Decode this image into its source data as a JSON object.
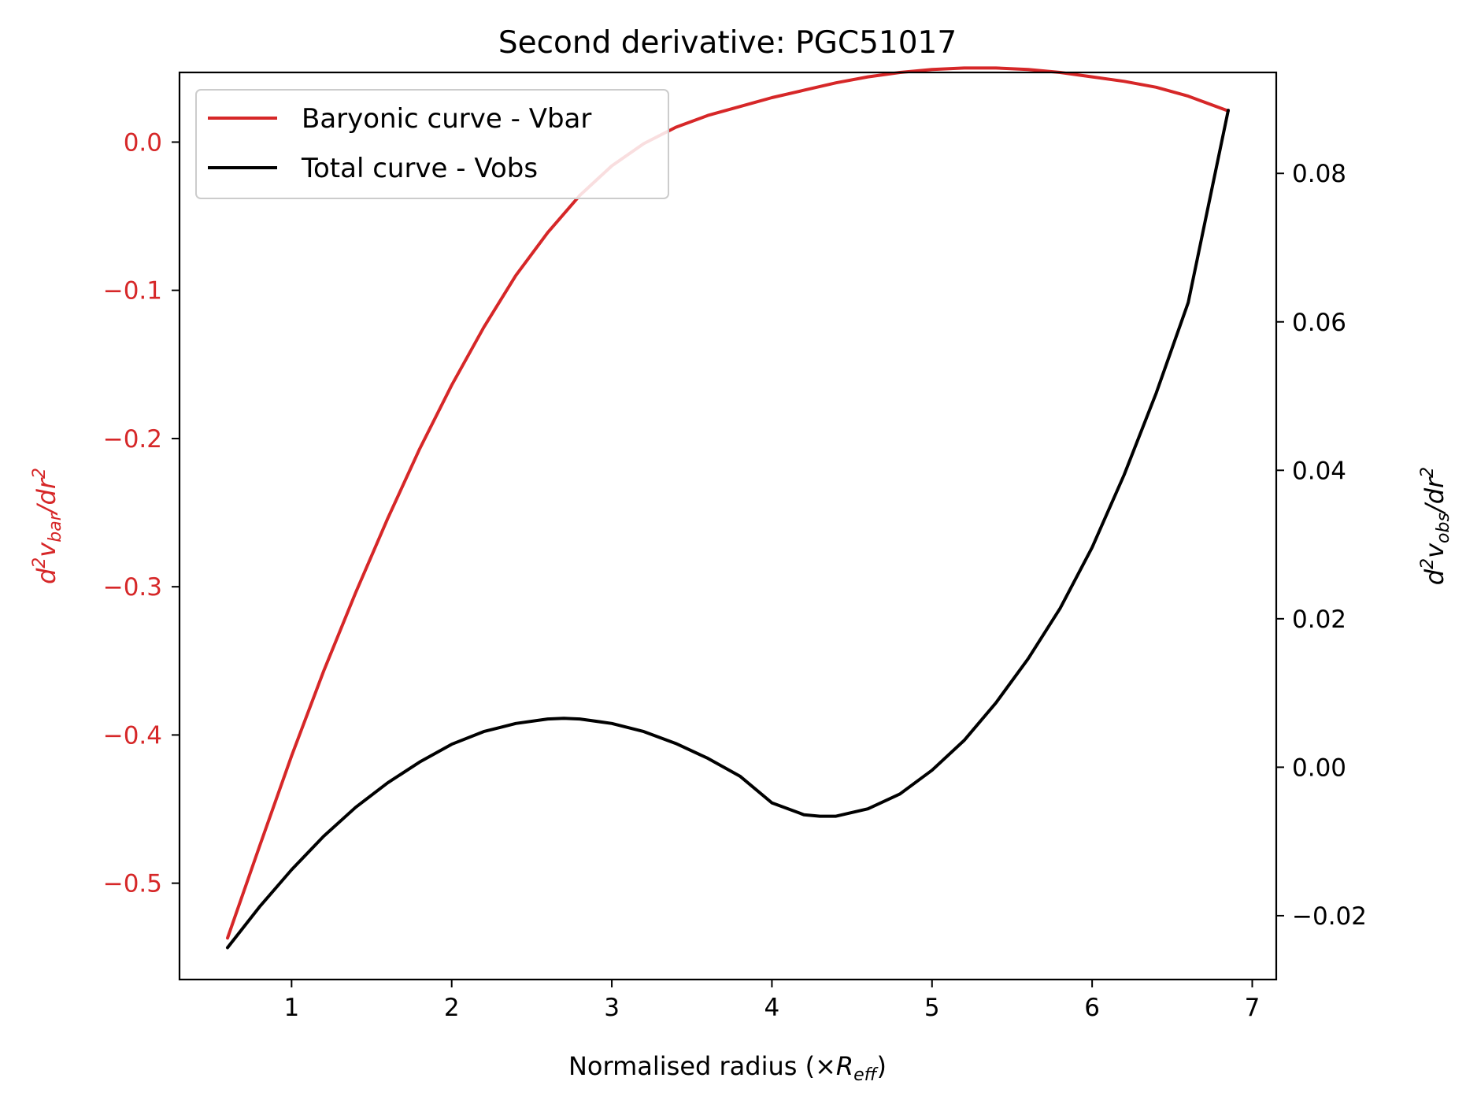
{
  "chart_data": {
    "type": "line",
    "title": "Second derivative: PGC51017",
    "xlabel": {
      "main": "Normalised radius (×",
      "var": "R",
      "sub": "eff",
      "close": ")"
    },
    "ylabel_left": {
      "prefix": "d",
      "sup1": "2",
      "var": "v",
      "sub": "bar",
      "middle": "/dr",
      "sup2": "2"
    },
    "ylabel_right": {
      "prefix": "d",
      "sup1": "2",
      "var": "v",
      "sub": "obs",
      "middle": "/dr",
      "sup2": "2"
    },
    "xlim": [
      0.3,
      7.15
    ],
    "ylim_left": [
      -0.565,
      0.047
    ],
    "ylim_right": [
      -0.0286,
      0.0936
    ],
    "x_ticks": [
      1,
      2,
      3,
      4,
      5,
      6,
      7
    ],
    "x_tick_labels": [
      "1",
      "2",
      "3",
      "4",
      "5",
      "6",
      "7"
    ],
    "y_left_ticks": [
      0.0,
      -0.1,
      -0.2,
      -0.3,
      -0.4,
      -0.5
    ],
    "y_left_tick_labels": [
      "0.0",
      "−0.1",
      "−0.2",
      "−0.3",
      "−0.4",
      "−0.5"
    ],
    "y_right_ticks": [
      0.08,
      0.06,
      0.04,
      0.02,
      0.0,
      -0.02
    ],
    "y_right_tick_labels": [
      "0.08",
      "0.06",
      "0.04",
      "0.02",
      "0.00",
      "−0.02"
    ],
    "grid": false,
    "legend_position": "top-left",
    "series": [
      {
        "name": "Baryonic curve - Vbar",
        "axis": "left",
        "color": "#d62728",
        "x": [
          0.6,
          0.8,
          1.0,
          1.2,
          1.4,
          1.6,
          1.8,
          2.0,
          2.2,
          2.4,
          2.6,
          2.8,
          3.0,
          3.2,
          3.4,
          3.6,
          3.7,
          3.8,
          4.0,
          4.2,
          4.4,
          4.6,
          4.8,
          5.0,
          5.2,
          5.4,
          5.6,
          5.8,
          6.0,
          6.2,
          6.4,
          6.6,
          6.85
        ],
        "values": [
          -0.537,
          -0.475,
          -0.414,
          -0.357,
          -0.304,
          -0.254,
          -0.207,
          -0.164,
          -0.125,
          -0.09,
          -0.061,
          -0.036,
          -0.016,
          -0.001,
          0.01,
          0.018,
          0.021,
          0.024,
          0.03,
          0.035,
          0.04,
          0.044,
          0.047,
          0.049,
          0.05,
          0.05,
          0.049,
          0.047,
          0.044,
          0.041,
          0.037,
          0.031,
          0.021
        ]
      },
      {
        "name": "Total curve - Vobs",
        "axis": "right",
        "color": "#000000",
        "x": [
          0.6,
          0.8,
          1.0,
          1.2,
          1.4,
          1.6,
          1.8,
          2.0,
          2.2,
          2.4,
          2.6,
          2.7,
          2.8,
          3.0,
          3.2,
          3.4,
          3.6,
          3.8,
          4.0,
          4.2,
          4.3,
          4.4,
          4.6,
          4.8,
          5.0,
          5.2,
          5.4,
          5.6,
          5.8,
          6.0,
          6.2,
          6.4,
          6.6,
          6.85
        ],
        "values": [
          -0.0243,
          -0.0188,
          -0.0138,
          -0.0093,
          -0.0054,
          -0.0021,
          0.0007,
          0.0031,
          0.0048,
          0.0059,
          0.0065,
          0.0066,
          0.0065,
          0.0059,
          0.0048,
          0.0032,
          0.0012,
          -0.0012,
          -0.0048,
          -0.0064,
          -0.0066,
          -0.0066,
          -0.0056,
          -0.0036,
          -0.0004,
          0.0036,
          0.0087,
          0.0146,
          0.0214,
          0.0296,
          0.0394,
          0.0504,
          0.0626,
          0.0885
        ]
      }
    ]
  }
}
